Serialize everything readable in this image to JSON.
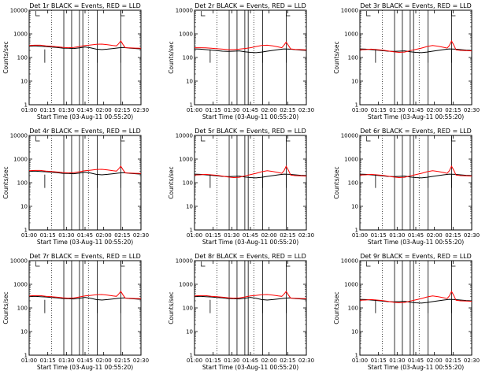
{
  "chart_data": [
    {
      "type": "line",
      "title": "Det 1r BLACK = Events, RED = LLD",
      "xlabel": "Start Time (03-Aug-11 00:55:20)",
      "ylabel": "Counts/sec",
      "ylim": [
        1,
        10000
      ],
      "log_y": true,
      "x_ticks": [
        "01:00",
        "01:15",
        "01:30",
        "01:45",
        "02:00",
        "02:15",
        "02:30"
      ],
      "y_ticks": [
        "1",
        "10",
        "100",
        "1000",
        "10000"
      ],
      "series": [
        {
          "name": "Events",
          "color": "#000000",
          "profile": "mid_events"
        },
        {
          "name": "LLD",
          "color": "#ff0000",
          "profile": "mid_lld"
        }
      ]
    },
    {
      "type": "line",
      "title": "Det 2r BLACK = Events, RED = LLD",
      "xlabel": "Start Time (03-Aug-11 00:55:20)",
      "ylabel": "Counts/sec",
      "ylim": [
        1,
        10000
      ],
      "log_y": true,
      "x_ticks": [
        "01:00",
        "01:15",
        "01:30",
        "01:45",
        "02:00",
        "02:15",
        "02:30"
      ],
      "y_ticks": [
        "1",
        "10",
        "100",
        "1000",
        "10000"
      ],
      "series": [
        {
          "name": "Events",
          "color": "#000000",
          "profile": "low_events"
        },
        {
          "name": "LLD",
          "color": "#ff0000",
          "profile": "low_lld"
        }
      ]
    },
    {
      "type": "line",
      "title": "Det 3r BLACK = Events, RED = LLD",
      "xlabel": "Start Time (03-Aug-11 00:55:20)",
      "ylabel": "Counts/sec",
      "ylim": [
        1,
        10000
      ],
      "log_y": true,
      "x_ticks": [
        "01:00",
        "01:15",
        "01:30",
        "01:45",
        "02:00",
        "02:15",
        "02:30"
      ],
      "y_ticks": [
        "1",
        "10",
        "100",
        "1000",
        "10000"
      ],
      "series": [
        {
          "name": "Events",
          "color": "#000000",
          "profile": "low_events"
        },
        {
          "name": "LLD",
          "color": "#ff0000",
          "profile": "high_lld"
        }
      ]
    },
    {
      "type": "line",
      "title": "Det 4r BLACK = Events, RED = LLD",
      "xlabel": "Start Time (03-Aug-11 00:55:20)",
      "ylabel": "Counts/sec",
      "ylim": [
        1,
        10000
      ],
      "log_y": true,
      "x_ticks": [
        "01:00",
        "01:15",
        "01:30",
        "01:45",
        "02:00",
        "02:15",
        "02:30"
      ],
      "y_ticks": [
        "1",
        "10",
        "100",
        "1000",
        "10000"
      ],
      "series": [
        {
          "name": "Events",
          "color": "#000000",
          "profile": "mid_events"
        },
        {
          "name": "LLD",
          "color": "#ff0000",
          "profile": "mid_lld"
        }
      ]
    },
    {
      "type": "line",
      "title": "Det 5r BLACK = Events, RED = LLD",
      "xlabel": "Start Time (03-Aug-11 00:55:20)",
      "ylabel": "Counts/sec",
      "ylim": [
        1,
        10000
      ],
      "log_y": true,
      "x_ticks": [
        "01:00",
        "01:15",
        "01:30",
        "01:45",
        "02:00",
        "02:15",
        "02:30"
      ],
      "y_ticks": [
        "1",
        "10",
        "100",
        "1000",
        "10000"
      ],
      "series": [
        {
          "name": "Events",
          "color": "#000000",
          "profile": "low_events"
        },
        {
          "name": "LLD",
          "color": "#ff0000",
          "profile": "high_lld"
        }
      ]
    },
    {
      "type": "line",
      "title": "Det 6r BLACK = Events, RED = LLD",
      "xlabel": "Start Time (03-Aug-11 00:55:20)",
      "ylabel": "Counts/sec",
      "ylim": [
        1,
        10000
      ],
      "log_y": true,
      "x_ticks": [
        "01:00",
        "01:15",
        "01:30",
        "01:45",
        "02:00",
        "02:15",
        "02:30"
      ],
      "y_ticks": [
        "1",
        "10",
        "100",
        "1000",
        "10000"
      ],
      "series": [
        {
          "name": "Events",
          "color": "#000000",
          "profile": "low_events"
        },
        {
          "name": "LLD",
          "color": "#ff0000",
          "profile": "high_lld"
        }
      ]
    },
    {
      "type": "line",
      "title": "Det 7r BLACK = Events, RED = LLD",
      "xlabel": "Start Time (03-Aug-11 00:55:20)",
      "ylabel": "Counts/sec",
      "ylim": [
        1,
        10000
      ],
      "log_y": true,
      "x_ticks": [
        "01:00",
        "01:15",
        "01:30",
        "01:45",
        "02:00",
        "02:15",
        "02:30"
      ],
      "y_ticks": [
        "1",
        "10",
        "100",
        "1000",
        "10000"
      ],
      "series": [
        {
          "name": "Events",
          "color": "#000000",
          "profile": "mid_events"
        },
        {
          "name": "LLD",
          "color": "#ff0000",
          "profile": "mid_lld"
        }
      ]
    },
    {
      "type": "line",
      "title": "Det 8r BLACK = Events, RED = LLD",
      "xlabel": "Start Time (03-Aug-11 00:55:20)",
      "ylabel": "Counts/sec",
      "ylim": [
        1,
        10000
      ],
      "log_y": true,
      "x_ticks": [
        "01:00",
        "01:15",
        "01:30",
        "01:45",
        "02:00",
        "02:15",
        "02:30"
      ],
      "y_ticks": [
        "1",
        "10",
        "100",
        "1000",
        "10000"
      ],
      "series": [
        {
          "name": "Events",
          "color": "#000000",
          "profile": "mid_events"
        },
        {
          "name": "LLD",
          "color": "#ff0000",
          "profile": "mid_lld"
        }
      ]
    },
    {
      "type": "line",
      "title": "Det 9r BLACK = Events, RED = LLD",
      "xlabel": "Start Time (03-Aug-11 00:55:20)",
      "ylabel": "Counts/sec",
      "ylim": [
        1,
        10000
      ],
      "log_y": true,
      "x_ticks": [
        "01:00",
        "01:15",
        "01:30",
        "01:45",
        "02:00",
        "02:15",
        "02:30"
      ],
      "y_ticks": [
        "1",
        "10",
        "100",
        "1000",
        "10000"
      ],
      "series": [
        {
          "name": "Events",
          "color": "#000000",
          "profile": "low_events"
        },
        {
          "name": "LLD",
          "color": "#ff0000",
          "profile": "high_lld"
        }
      ]
    }
  ],
  "profiles": {
    "mid_events": [
      [
        0,
        300
      ],
      [
        0.05,
        310
      ],
      [
        0.1,
        300
      ],
      [
        0.15,
        290
      ],
      [
        0.2,
        275
      ],
      [
        0.25,
        265
      ],
      [
        0.3,
        250
      ],
      [
        0.35,
        245
      ],
      [
        0.4,
        240
      ],
      [
        0.45,
        255
      ],
      [
        0.48,
        270
      ],
      [
        0.5,
        280
      ],
      [
        0.55,
        255
      ],
      [
        0.6,
        225
      ],
      [
        0.65,
        215
      ],
      [
        0.7,
        225
      ],
      [
        0.75,
        240
      ],
      [
        0.8,
        255
      ],
      [
        0.85,
        265
      ],
      [
        0.9,
        250
      ],
      [
        0.95,
        240
      ],
      [
        1,
        230
      ]
    ],
    "mid_lld": [
      [
        0,
        320
      ],
      [
        0.05,
        330
      ],
      [
        0.1,
        330
      ],
      [
        0.15,
        310
      ],
      [
        0.2,
        300
      ],
      [
        0.25,
        285
      ],
      [
        0.3,
        270
      ],
      [
        0.35,
        260
      ],
      [
        0.4,
        265
      ],
      [
        0.45,
        290
      ],
      [
        0.5,
        320
      ],
      [
        0.55,
        340
      ],
      [
        0.6,
        360
      ],
      [
        0.65,
        370
      ],
      [
        0.7,
        350
      ],
      [
        0.75,
        320
      ],
      [
        0.78,
        310
      ],
      [
        0.8,
        380
      ],
      [
        0.82,
        500
      ],
      [
        0.84,
        350
      ],
      [
        0.86,
        260
      ],
      [
        0.9,
        255
      ],
      [
        0.95,
        250
      ],
      [
        1,
        245
      ]
    ],
    "low_events": [
      [
        0,
        230
      ],
      [
        0.05,
        225
      ],
      [
        0.1,
        215
      ],
      [
        0.15,
        205
      ],
      [
        0.2,
        195
      ],
      [
        0.25,
        185
      ],
      [
        0.3,
        180
      ],
      [
        0.35,
        185
      ],
      [
        0.4,
        190
      ],
      [
        0.45,
        175
      ],
      [
        0.5,
        165
      ],
      [
        0.55,
        160
      ],
      [
        0.6,
        170
      ],
      [
        0.65,
        185
      ],
      [
        0.7,
        200
      ],
      [
        0.75,
        215
      ],
      [
        0.8,
        230
      ],
      [
        0.85,
        225
      ],
      [
        0.9,
        215
      ],
      [
        0.95,
        205
      ],
      [
        1,
        200
      ]
    ],
    "low_lld": [
      [
        0,
        260
      ],
      [
        0.05,
        260
      ],
      [
        0.1,
        255
      ],
      [
        0.15,
        245
      ],
      [
        0.2,
        235
      ],
      [
        0.25,
        225
      ],
      [
        0.3,
        215
      ],
      [
        0.35,
        215
      ],
      [
        0.4,
        225
      ],
      [
        0.45,
        240
      ],
      [
        0.5,
        260
      ],
      [
        0.55,
        290
      ],
      [
        0.6,
        320
      ],
      [
        0.65,
        330
      ],
      [
        0.7,
        310
      ],
      [
        0.75,
        280
      ],
      [
        0.78,
        260
      ],
      [
        0.8,
        330
      ],
      [
        0.82,
        450
      ],
      [
        0.84,
        320
      ],
      [
        0.86,
        230
      ],
      [
        0.9,
        220
      ],
      [
        0.95,
        215
      ],
      [
        1,
        210
      ]
    ],
    "high_lld": [
      [
        0,
        210
      ],
      [
        0.05,
        215
      ],
      [
        0.1,
        225
      ],
      [
        0.15,
        215
      ],
      [
        0.2,
        205
      ],
      [
        0.25,
        190
      ],
      [
        0.3,
        175
      ],
      [
        0.35,
        165
      ],
      [
        0.4,
        170
      ],
      [
        0.45,
        195
      ],
      [
        0.5,
        220
      ],
      [
        0.55,
        250
      ],
      [
        0.6,
        290
      ],
      [
        0.65,
        320
      ],
      [
        0.7,
        300
      ],
      [
        0.75,
        270
      ],
      [
        0.78,
        250
      ],
      [
        0.8,
        320
      ],
      [
        0.82,
        500
      ],
      [
        0.84,
        330
      ],
      [
        0.86,
        210
      ],
      [
        0.9,
        200
      ],
      [
        0.95,
        195
      ],
      [
        1,
        190
      ]
    ]
  }
}
